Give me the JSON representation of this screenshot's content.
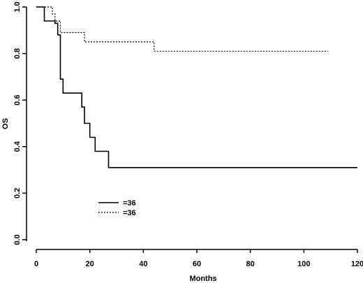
{
  "chart_data": {
    "type": "line",
    "title": "",
    "xlabel": "Months",
    "ylabel": "OS",
    "xlim": [
      0,
      120
    ],
    "ylim": [
      0,
      1
    ],
    "x_ticks": [
      "0",
      "20",
      "40",
      "60",
      "80",
      "100",
      "120"
    ],
    "y_ticks": [
      "0.0",
      "0.2",
      "0.4",
      "0.6",
      "0.8",
      "1.0"
    ],
    "grid": false,
    "legend_placement": "lower-left",
    "step": true,
    "series": [
      {
        "name": "=36",
        "style": "solid",
        "color": "#000000",
        "points": [
          [
            0,
            1.0
          ],
          [
            3,
            1.0
          ],
          [
            3,
            0.94
          ],
          [
            7,
            0.94
          ],
          [
            7,
            0.93
          ],
          [
            8,
            0.93
          ],
          [
            8,
            0.88
          ],
          [
            9,
            0.88
          ],
          [
            9,
            0.69
          ],
          [
            10,
            0.69
          ],
          [
            10,
            0.63
          ],
          [
            17,
            0.63
          ],
          [
            17,
            0.57
          ],
          [
            18,
            0.57
          ],
          [
            18,
            0.5
          ],
          [
            20,
            0.5
          ],
          [
            20,
            0.44
          ],
          [
            22,
            0.44
          ],
          [
            22,
            0.38
          ],
          [
            27,
            0.38
          ],
          [
            27,
            0.31
          ],
          [
            120,
            0.31
          ]
        ]
      },
      {
        "name": "=36",
        "style": "dotted",
        "color": "#000000",
        "points": [
          [
            0,
            1.0
          ],
          [
            6,
            1.0
          ],
          [
            6,
            0.97
          ],
          [
            7,
            0.97
          ],
          [
            7,
            0.94
          ],
          [
            9,
            0.94
          ],
          [
            9,
            0.89
          ],
          [
            18,
            0.89
          ],
          [
            18,
            0.85
          ],
          [
            44,
            0.85
          ],
          [
            44,
            0.81
          ],
          [
            109,
            0.81
          ]
        ]
      }
    ]
  }
}
